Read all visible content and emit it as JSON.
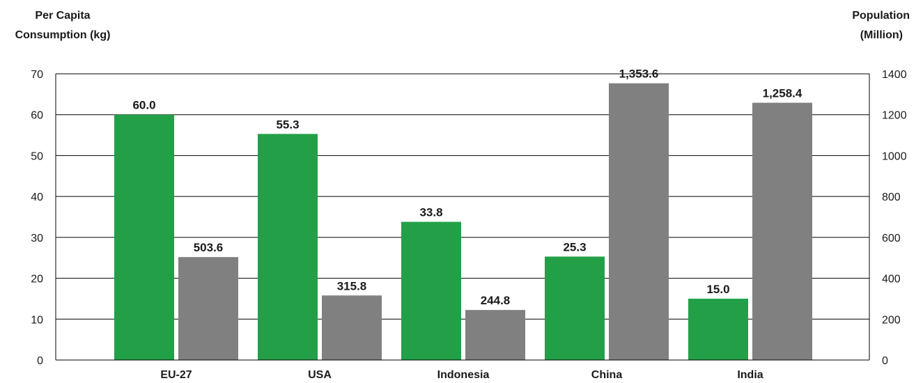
{
  "chart_data": {
    "type": "bar",
    "categories": [
      "EU-27",
      "USA",
      "Indonesia",
      "China",
      "India"
    ],
    "left_axis": {
      "title_lines": [
        "Per Capita",
        "Consumption (kg)"
      ],
      "ylim": [
        0,
        70
      ],
      "ticks": [
        0,
        10,
        20,
        30,
        40,
        50,
        60,
        70
      ],
      "tick_labels": [
        "0",
        "10",
        "20",
        "30",
        "40",
        "50",
        "60",
        "70"
      ]
    },
    "right_axis": {
      "title_lines": [
        "Population",
        "(Million)"
      ],
      "ylim": [
        0,
        1400
      ],
      "ticks": [
        0,
        200,
        400,
        600,
        800,
        1000,
        1200,
        1400
      ],
      "tick_labels": [
        "0",
        "200",
        "400",
        "600",
        "800",
        "1000",
        "1200",
        "1400"
      ]
    },
    "series": [
      {
        "axis": "left",
        "color": "#23a047",
        "values": [
          60.0,
          55.3,
          33.8,
          25.3,
          15.0
        ],
        "labels": [
          "60.0",
          "55.3",
          "33.8",
          "25.3",
          "15.0"
        ]
      },
      {
        "axis": "right",
        "color": "#808080",
        "values": [
          503.6,
          315.8,
          244.8,
          1353.6,
          1258.4
        ],
        "labels": [
          "503.6",
          "315.8",
          "244.8",
          "1,353.6",
          "1,258.4"
        ]
      }
    ],
    "grid": true,
    "legend": "none"
  }
}
